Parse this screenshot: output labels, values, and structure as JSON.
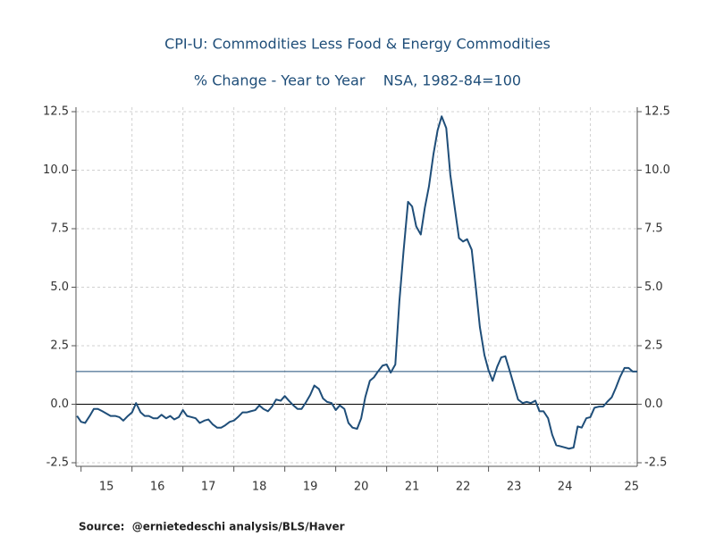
{
  "chart_data": {
    "type": "line",
    "title": "CPI-U: Commodities Less Food & Energy Commodities",
    "subtitle": "% Change - Year to Year    NSA, 1982-84=100",
    "source": "Source:  @ernietedeschi analysis/BLS/Haver",
    "xlim": [
      2014.9,
      2025.92
    ],
    "xticks": [
      {
        "value": 2015,
        "label": "15"
      },
      {
        "value": 2016,
        "label": "16"
      },
      {
        "value": 2017,
        "label": "17"
      },
      {
        "value": 2018,
        "label": "18"
      },
      {
        "value": 2019,
        "label": "19"
      },
      {
        "value": 2020,
        "label": "20"
      },
      {
        "value": 2021,
        "label": "21"
      },
      {
        "value": 2022,
        "label": "22"
      },
      {
        "value": 2023,
        "label": "23"
      },
      {
        "value": 2024,
        "label": "24"
      },
      {
        "value": 2025,
        "label": "25"
      }
    ],
    "ylim": [
      -2.5,
      12.5
    ],
    "yticks": [
      12.5,
      {
        "value": 10,
        "label": "10.0"
      },
      7.5,
      {
        "value": 5,
        "label": "5.0"
      },
      2.5,
      {
        "value": 0,
        "label": "0.0"
      },
      -2.5
    ],
    "grid": true,
    "reference_line": 1.4,
    "reference_color": "#1f4e79",
    "x": [
      2014.92,
      2015.0,
      2015.08,
      2015.17,
      2015.25,
      2015.33,
      2015.42,
      2015.5,
      2015.58,
      2015.67,
      2015.75,
      2015.83,
      2015.92,
      2016.0,
      2016.08,
      2016.17,
      2016.25,
      2016.33,
      2016.42,
      2016.5,
      2016.58,
      2016.67,
      2016.75,
      2016.83,
      2016.92,
      2017.0,
      2017.08,
      2017.17,
      2017.25,
      2017.33,
      2017.42,
      2017.5,
      2017.58,
      2017.67,
      2017.75,
      2017.83,
      2017.92,
      2018.0,
      2018.08,
      2018.17,
      2018.25,
      2018.33,
      2018.42,
      2018.5,
      2018.58,
      2018.67,
      2018.75,
      2018.83,
      2018.92,
      2019.0,
      2019.08,
      2019.17,
      2019.25,
      2019.33,
      2019.42,
      2019.5,
      2019.58,
      2019.67,
      2019.75,
      2019.83,
      2019.92,
      2020.0,
      2020.08,
      2020.17,
      2020.25,
      2020.33,
      2020.42,
      2020.5,
      2020.58,
      2020.67,
      2020.75,
      2020.83,
      2020.92,
      2021.0,
      2021.08,
      2021.17,
      2021.25,
      2021.33,
      2021.42,
      2021.5,
      2021.58,
      2021.67,
      2021.75,
      2021.83,
      2021.92,
      2022.0,
      2022.08,
      2022.17,
      2022.25,
      2022.33,
      2022.42,
      2022.5,
      2022.58,
      2022.67,
      2022.75,
      2022.83,
      2022.92,
      2023.0,
      2023.08,
      2023.17,
      2023.25,
      2023.33,
      2023.42,
      2023.5,
      2023.58,
      2023.67,
      2023.75,
      2023.83,
      2023.92,
      2024.0,
      2024.08,
      2024.17,
      2024.25,
      2024.33,
      2024.42,
      2024.5,
      2024.58,
      2024.67,
      2024.75,
      2024.83,
      2024.92,
      2025.0,
      2025.08,
      2025.17,
      2025.25,
      2025.33,
      2025.42,
      2025.5,
      2025.58,
      2025.67,
      2025.75,
      2025.83,
      2025.92
    ],
    "series": [
      {
        "color": "#1f4e79",
        "values": [
          -0.5,
          -0.75,
          -0.8,
          -0.5,
          -0.2,
          -0.2,
          -0.3,
          -0.4,
          -0.5,
          -0.5,
          -0.55,
          -0.7,
          -0.5,
          -0.35,
          0.05,
          -0.35,
          -0.5,
          -0.5,
          -0.6,
          -0.6,
          -0.45,
          -0.6,
          -0.5,
          -0.65,
          -0.55,
          -0.25,
          -0.5,
          -0.55,
          -0.6,
          -0.8,
          -0.7,
          -0.65,
          -0.85,
          -1.0,
          -1.0,
          -0.9,
          -0.75,
          -0.7,
          -0.55,
          -0.35,
          -0.35,
          -0.3,
          -0.25,
          -0.05,
          -0.2,
          -0.3,
          -0.1,
          0.2,
          0.15,
          0.35,
          0.15,
          -0.05,
          -0.2,
          -0.2,
          0.1,
          0.4,
          0.8,
          0.65,
          0.25,
          0.1,
          0.05,
          -0.25,
          -0.05,
          -0.2,
          -0.8,
          -1.0,
          -1.05,
          -0.6,
          0.3,
          1.0,
          1.15,
          1.4,
          1.65,
          1.7,
          1.35,
          1.7,
          4.4,
          6.5,
          8.65,
          8.45,
          7.6,
          7.25,
          8.4,
          9.3,
          10.7,
          11.7,
          12.3,
          11.8,
          9.8,
          8.5,
          7.1,
          6.95,
          7.05,
          6.6,
          5.0,
          3.3,
          2.1,
          1.45,
          1.0,
          1.6,
          2.0,
          2.05,
          1.4,
          0.8,
          0.2,
          0.05,
          0.1,
          0.05,
          0.15,
          -0.3,
          -0.3,
          -0.6,
          -1.3,
          -1.75,
          -1.8,
          -1.85,
          -1.9,
          -1.85,
          -0.95,
          -1.0,
          -0.6,
          -0.55,
          -0.15,
          -0.1,
          -0.1,
          0.1,
          0.3,
          0.7,
          1.15,
          1.55,
          1.55,
          1.4,
          1.4
        ]
      }
    ]
  }
}
